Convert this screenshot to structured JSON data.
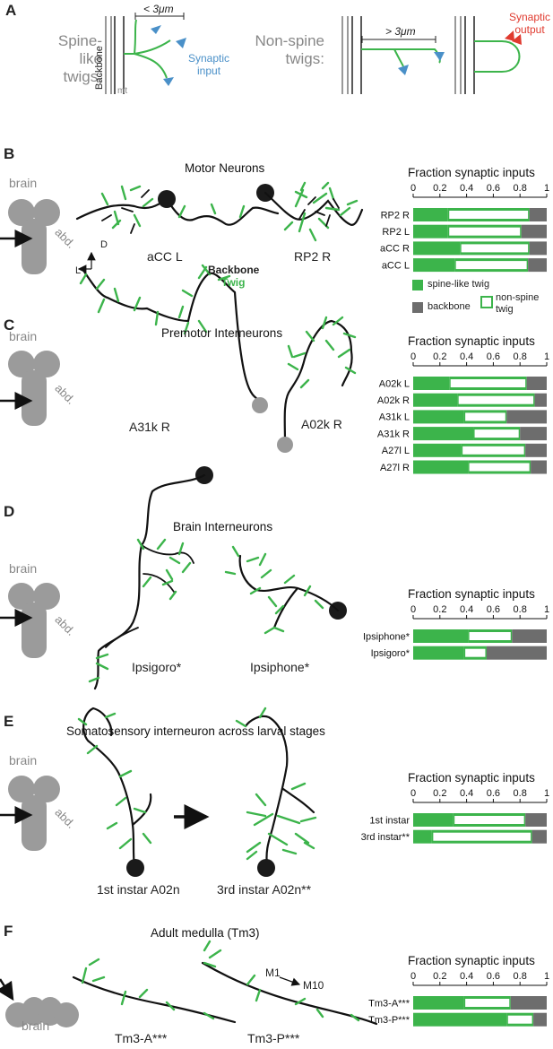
{
  "panel_a": {
    "label": "A",
    "spine_label_1": "Spine-like",
    "spine_label_2": "twigs:",
    "nonspine_label_1": "Non-spine",
    "nonspine_label_2": "twigs:",
    "backbone": "Backbone",
    "mt": "mt",
    "len_short": "< 3μm",
    "len_long": "> 3μm",
    "syn_input_1": "Synaptic",
    "syn_input_2": "input",
    "syn_output_1": "Synaptic",
    "syn_output_2": "output"
  },
  "body_labels": {
    "brain": "brain",
    "abd": "abd."
  },
  "panel_b": {
    "label": "B",
    "title": "Motor Neurons",
    "neuron1": "aCC L",
    "neuron2": "RP2 R",
    "legend_backbone": "Backbone",
    "legend_twig": "Twig",
    "axis_d": "D",
    "axis_l": "L"
  },
  "panel_c": {
    "label": "C",
    "title": "Premotor Interneurons",
    "neuron1": "A31k R",
    "neuron2": "A02k R"
  },
  "panel_d": {
    "label": "D",
    "title": "Brain Interneurons",
    "neuron1": "Ipsigoro*",
    "neuron2": "Ipsiphone*"
  },
  "panel_e": {
    "label": "E",
    "title": "Somatosensory interneuron across larval stages",
    "neuron1": "1st instar A02n",
    "neuron2": "3rd instar A02n**"
  },
  "panel_f": {
    "label": "F",
    "title": "Adult medulla (Tm3)",
    "neuron1": "Tm3-A***",
    "neuron2": "Tm3-P***",
    "m1": "M1",
    "m10": "M10"
  },
  "legend": {
    "spine": "spine-like twig",
    "backbone": "backbone",
    "nonspine_1": "non-spine",
    "nonspine_2": "twig"
  },
  "colors": {
    "spine": "#3cb44b",
    "backbone": "#6d6d6d",
    "nonspine": "#ffffff",
    "neuron_twig": "#3cb44b",
    "neuron_backbone": "#111111",
    "synaptic_input": "#4a90c8",
    "synaptic_output": "#e03a2f"
  },
  "chart_data": [
    {
      "type": "bar",
      "stacked": true,
      "orientation": "horizontal",
      "title": "Fraction synaptic inputs",
      "xlim": [
        0,
        1
      ],
      "ticks": [
        "0",
        "0.2",
        "0.4",
        "0.6",
        "0.8",
        "1"
      ],
      "categories": [
        "RP2 R",
        "RP2 L",
        "aCC R",
        "aCC L"
      ],
      "series": [
        {
          "name": "spine-like twig",
          "values": [
            0.26,
            0.26,
            0.35,
            0.31
          ]
        },
        {
          "name": "non-spine twig",
          "values": [
            0.61,
            0.55,
            0.52,
            0.55
          ]
        },
        {
          "name": "backbone",
          "values": [
            0.13,
            0.19,
            0.13,
            0.14
          ]
        }
      ]
    },
    {
      "type": "bar",
      "stacked": true,
      "orientation": "horizontal",
      "title": "Fraction synaptic inputs",
      "xlim": [
        0,
        1
      ],
      "ticks": [
        "0",
        "0.2",
        "0.4",
        "0.6",
        "0.8",
        "1"
      ],
      "categories": [
        "A02k L",
        "A02k R",
        "A31k L",
        "A31k R",
        "A27l L",
        "A27l R"
      ],
      "series": [
        {
          "name": "spine-like twig",
          "values": [
            0.27,
            0.33,
            0.38,
            0.45,
            0.36,
            0.41
          ]
        },
        {
          "name": "non-spine twig",
          "values": [
            0.58,
            0.58,
            0.32,
            0.35,
            0.48,
            0.47
          ]
        },
        {
          "name": "backbone",
          "values": [
            0.15,
            0.09,
            0.3,
            0.2,
            0.16,
            0.12
          ]
        }
      ]
    },
    {
      "type": "bar",
      "stacked": true,
      "orientation": "horizontal",
      "title": "Fraction synaptic inputs",
      "xlim": [
        0,
        1
      ],
      "ticks": [
        "0",
        "0.2",
        "0.4",
        "0.6",
        "0.8",
        "1"
      ],
      "categories": [
        "Ipsiphone*",
        "Ipsigoro*"
      ],
      "series": [
        {
          "name": "spine-like twig",
          "values": [
            0.41,
            0.38
          ]
        },
        {
          "name": "non-spine twig",
          "values": [
            0.33,
            0.17
          ]
        },
        {
          "name": "backbone",
          "values": [
            0.26,
            0.45
          ]
        }
      ]
    },
    {
      "type": "bar",
      "stacked": true,
      "orientation": "horizontal",
      "title": "Fraction synaptic inputs",
      "xlim": [
        0,
        1
      ],
      "ticks": [
        "0",
        "0.2",
        "0.4",
        "0.6",
        "0.8",
        "1"
      ],
      "categories": [
        "1st instar",
        "3rd instar**"
      ],
      "series": [
        {
          "name": "spine-like twig",
          "values": [
            0.3,
            0.14
          ]
        },
        {
          "name": "non-spine twig",
          "values": [
            0.54,
            0.75
          ]
        },
        {
          "name": "backbone",
          "values": [
            0.16,
            0.11
          ]
        }
      ]
    },
    {
      "type": "bar",
      "stacked": true,
      "orientation": "horizontal",
      "title": "Fraction synaptic inputs",
      "xlim": [
        0,
        1
      ],
      "ticks": [
        "0",
        "0.2",
        "0.4",
        "0.6",
        "0.8",
        "1"
      ],
      "categories": [
        "Tm3-A***",
        "Tm3-P***"
      ],
      "series": [
        {
          "name": "spine-like twig",
          "values": [
            0.38,
            0.7
          ]
        },
        {
          "name": "non-spine twig",
          "values": [
            0.35,
            0.2
          ]
        },
        {
          "name": "backbone",
          "values": [
            0.27,
            0.1
          ]
        }
      ]
    }
  ]
}
